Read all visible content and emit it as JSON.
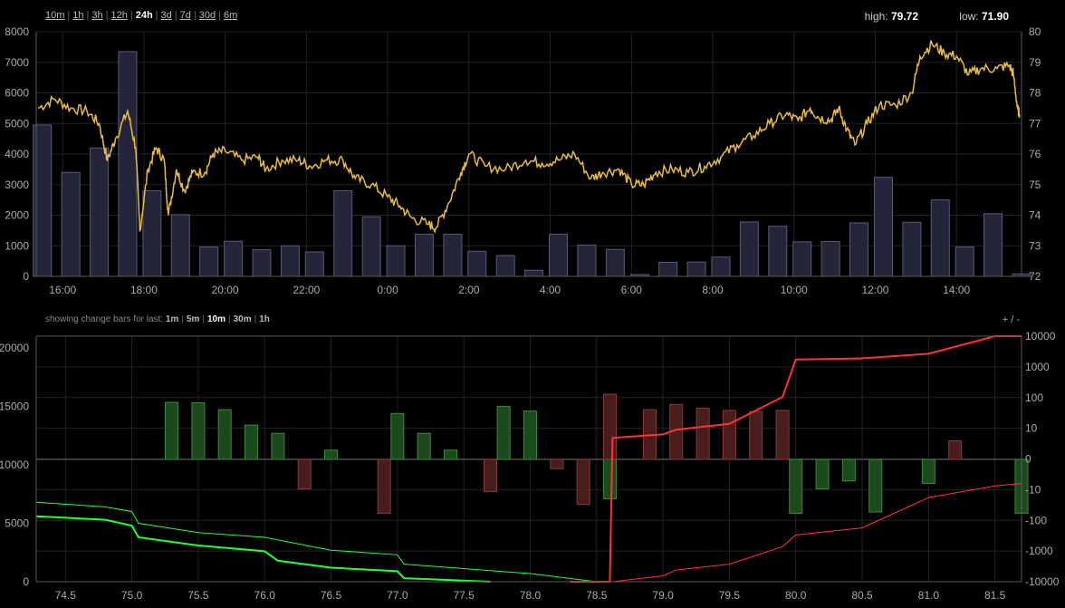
{
  "timeframes": [
    "10m",
    "1h",
    "3h",
    "12h",
    "24h",
    "3d",
    "7d",
    "30d",
    "6m"
  ],
  "active_timeframe": "24h",
  "stats": {
    "high_label": "high:",
    "high_value": "79.72",
    "low_label": "low:",
    "low_value": "71.90"
  },
  "change_bars": {
    "label": "showing change bars for last:",
    "options": [
      "1m",
      "5m",
      "10m",
      "30m",
      "1h"
    ],
    "active": "10m"
  },
  "zoom_controls": {
    "plus": "+",
    "sep": "/",
    "minus": "-"
  },
  "colors": {
    "price": "#e8bb45",
    "volume_fill": "#25253a",
    "volume_stroke": "#5a5a78",
    "bid": "#22ff33",
    "ask": "#ff3333",
    "bar_up": "#1d4a1d",
    "bar_down": "#4a1d1d",
    "grid": "#222222",
    "axis": "#5a5a5a"
  },
  "chart_data": [
    {
      "type": "line",
      "name": "price_volume",
      "x_tick_labels": [
        "16:00",
        "18:00",
        "20:00",
        "22:00",
        "0:00",
        "2:00",
        "4:00",
        "6:00",
        "8:00",
        "10:00",
        "12:00",
        "14:00"
      ],
      "x_tick_hours": [
        16,
        18,
        20,
        22,
        24,
        26,
        28,
        30,
        32,
        34,
        36,
        38
      ],
      "x_range": [
        15.35,
        39.6
      ],
      "volume": {
        "axis": "left",
        "ylim": [
          0,
          8000
        ],
        "ticks": [
          0,
          1000,
          2000,
          3000,
          4000,
          5000,
          6000,
          7000,
          8000
        ],
        "x": [
          15.5,
          16.2,
          16.9,
          17.6,
          18.2,
          18.9,
          19.6,
          20.2,
          20.9,
          21.6,
          22.2,
          22.9,
          23.6,
          24.2,
          24.9,
          25.6,
          26.2,
          26.9,
          27.6,
          28.2,
          28.9,
          29.6,
          30.2,
          30.9,
          31.6,
          32.2,
          32.9,
          33.6,
          34.2,
          34.9,
          35.6,
          36.2,
          36.9,
          37.6,
          38.2,
          38.9,
          39.6
        ],
        "values": [
          4950,
          3400,
          4200,
          7350,
          2800,
          2020,
          960,
          1150,
          870,
          1000,
          800,
          2800,
          1950,
          1000,
          1380,
          1380,
          820,
          680,
          200,
          1380,
          1020,
          880,
          60,
          460,
          470,
          630,
          1780,
          1640,
          1130,
          1140,
          1750,
          3240,
          1770,
          2500,
          960,
          2050,
          80
        ]
      },
      "price": {
        "axis": "right",
        "ylim": [
          72,
          80
        ],
        "ticks": [
          72,
          73,
          74,
          75,
          76,
          77,
          78,
          79,
          80
        ],
        "points": [
          [
            15.4,
            77.5
          ],
          [
            15.8,
            77.8
          ],
          [
            16.2,
            77.5
          ],
          [
            16.6,
            77.4
          ],
          [
            16.9,
            77.0
          ],
          [
            17.1,
            75.8
          ],
          [
            17.3,
            76.5
          ],
          [
            17.6,
            77.4
          ],
          [
            17.8,
            76.2
          ],
          [
            17.9,
            73.5
          ],
          [
            18.1,
            75.5
          ],
          [
            18.3,
            76.2
          ],
          [
            18.5,
            75.8
          ],
          [
            18.6,
            74.0
          ],
          [
            18.8,
            75.5
          ],
          [
            19.0,
            74.8
          ],
          [
            19.2,
            75.4
          ],
          [
            19.5,
            75.4
          ],
          [
            19.7,
            76.0
          ],
          [
            20.0,
            76.1
          ],
          [
            20.4,
            75.8
          ],
          [
            20.8,
            75.9
          ],
          [
            21.0,
            75.5
          ],
          [
            21.4,
            75.8
          ],
          [
            21.8,
            75.8
          ],
          [
            22.1,
            75.6
          ],
          [
            22.5,
            75.8
          ],
          [
            22.9,
            75.8
          ],
          [
            23.2,
            75.2
          ],
          [
            23.6,
            75.0
          ],
          [
            24.0,
            74.6
          ],
          [
            24.3,
            74.3
          ],
          [
            24.6,
            73.9
          ],
          [
            25.0,
            73.7
          ],
          [
            25.2,
            73.6
          ],
          [
            25.5,
            74.4
          ],
          [
            25.8,
            75.4
          ],
          [
            26.0,
            76.0
          ],
          [
            26.4,
            75.6
          ],
          [
            26.9,
            75.5
          ],
          [
            27.4,
            75.8
          ],
          [
            27.8,
            75.7
          ],
          [
            28.2,
            75.8
          ],
          [
            28.6,
            76.0
          ],
          [
            29.0,
            75.2
          ],
          [
            29.3,
            75.4
          ],
          [
            29.7,
            75.5
          ],
          [
            30.0,
            75.0
          ],
          [
            30.3,
            75.0
          ],
          [
            30.6,
            75.4
          ],
          [
            31.0,
            75.5
          ],
          [
            31.4,
            75.4
          ],
          [
            31.8,
            75.6
          ],
          [
            32.2,
            75.9
          ],
          [
            32.6,
            76.3
          ],
          [
            33.0,
            76.6
          ],
          [
            33.4,
            77.0
          ],
          [
            33.8,
            77.3
          ],
          [
            34.1,
            77.1
          ],
          [
            34.4,
            77.5
          ],
          [
            34.6,
            77.2
          ],
          [
            34.9,
            77.1
          ],
          [
            35.1,
            77.5
          ],
          [
            35.3,
            76.8
          ],
          [
            35.5,
            76.3
          ],
          [
            35.8,
            77.0
          ],
          [
            36.1,
            77.6
          ],
          [
            36.5,
            77.6
          ],
          [
            36.9,
            78.0
          ],
          [
            37.1,
            79.2
          ],
          [
            37.4,
            79.6
          ],
          [
            37.7,
            79.3
          ],
          [
            38.0,
            79.2
          ],
          [
            38.3,
            78.6
          ],
          [
            38.6,
            78.8
          ],
          [
            39.0,
            78.8
          ],
          [
            39.3,
            78.9
          ],
          [
            39.4,
            78.6
          ],
          [
            39.5,
            77.5
          ],
          [
            39.55,
            77.3
          ]
        ]
      }
    },
    {
      "type": "area",
      "name": "market_depth_change_bars",
      "x_tick_labels": [
        "74.5",
        "75.0",
        "75.5",
        "76.0",
        "76.5",
        "77.0",
        "77.5",
        "78.0",
        "78.5",
        "79.0",
        "79.5",
        "80.0",
        "80.5",
        "81.0",
        "81.5"
      ],
      "x_ticks": [
        74.5,
        75.0,
        75.5,
        76.0,
        76.5,
        77.0,
        77.5,
        78.0,
        78.5,
        79.0,
        79.5,
        80.0,
        80.5,
        81.0,
        81.5
      ],
      "x_range": [
        74.28,
        81.7
      ],
      "left_axis": {
        "ylim": [
          0,
          21000
        ],
        "ticks": [
          0,
          5000,
          10000,
          15000,
          20000
        ]
      },
      "right_axis": {
        "labels": [
          "-10000",
          "-1000",
          "-100",
          "-10",
          "0",
          "10",
          "100",
          "1000",
          "10000"
        ]
      },
      "bid_depth": [
        [
          74.28,
          5600
        ],
        [
          74.8,
          5300
        ],
        [
          75.0,
          4800
        ],
        [
          75.05,
          3800
        ],
        [
          75.5,
          3100
        ],
        [
          76.0,
          2600
        ],
        [
          76.1,
          1800
        ],
        [
          76.5,
          1200
        ],
        [
          77.0,
          900
        ],
        [
          77.05,
          300
        ],
        [
          77.7,
          0
        ]
      ],
      "bid_depth_thin": [
        [
          74.28,
          6800
        ],
        [
          74.8,
          6400
        ],
        [
          75.0,
          6000
        ],
        [
          75.05,
          5000
        ],
        [
          75.5,
          4200
        ],
        [
          76.0,
          3800
        ],
        [
          76.5,
          2700
        ],
        [
          77.0,
          2300
        ],
        [
          77.05,
          1500
        ],
        [
          78.0,
          700
        ],
        [
          78.5,
          0
        ]
      ],
      "ask_depth": [
        [
          78.3,
          0
        ],
        [
          78.6,
          0
        ],
        [
          78.62,
          12300
        ],
        [
          79.0,
          12600
        ],
        [
          79.1,
          13000
        ],
        [
          79.5,
          13500
        ],
        [
          79.9,
          15800
        ],
        [
          80.0,
          19000
        ],
        [
          80.5,
          19100
        ],
        [
          81.0,
          19500
        ],
        [
          81.5,
          21000
        ],
        [
          81.7,
          21000
        ]
      ],
      "ask_depth_thin": [
        [
          78.3,
          0
        ],
        [
          78.62,
          0
        ],
        [
          79.0,
          500
        ],
        [
          79.1,
          1000
        ],
        [
          79.5,
          1500
        ],
        [
          79.9,
          3000
        ],
        [
          80.0,
          4000
        ],
        [
          80.5,
          4600
        ],
        [
          81.0,
          7200
        ],
        [
          81.5,
          8200
        ],
        [
          81.7,
          8400
        ]
      ],
      "change_bars": [
        [
          75.3,
          70
        ],
        [
          75.5,
          68
        ],
        [
          75.7,
          40
        ],
        [
          75.9,
          12
        ],
        [
          76.1,
          6
        ],
        [
          76.3,
          -8
        ],
        [
          76.5,
          1
        ],
        [
          76.9,
          -55
        ],
        [
          77.0,
          30
        ],
        [
          77.2,
          6
        ],
        [
          77.4,
          1
        ],
        [
          77.7,
          -10
        ],
        [
          77.8,
          52
        ],
        [
          78.0,
          36
        ],
        [
          78.2,
          -1
        ],
        [
          78.4,
          -28
        ],
        [
          78.6,
          -18
        ],
        [
          78.6,
          130
        ],
        [
          78.9,
          40
        ],
        [
          79.1,
          60
        ],
        [
          79.3,
          45
        ],
        [
          79.5,
          38
        ],
        [
          79.7,
          35
        ],
        [
          79.9,
          38
        ],
        [
          80.0,
          -55
        ],
        [
          80.2,
          -8
        ],
        [
          80.4,
          -4
        ],
        [
          80.6,
          -50
        ],
        [
          81.0,
          -5
        ],
        [
          81.2,
          3
        ],
        [
          81.7,
          -55
        ]
      ]
    }
  ]
}
